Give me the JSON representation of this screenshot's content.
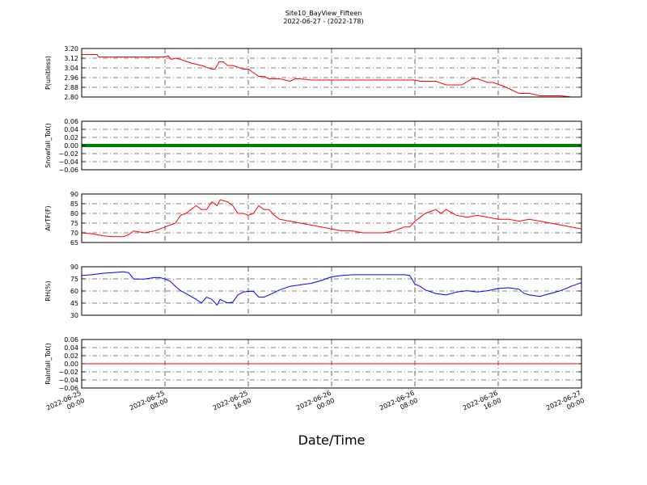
{
  "chart_data": {
    "type": "line",
    "title": "Site10_BayView_Fifteen",
    "subtitle": "2022-06-27 - (2022-178)",
    "xlabel": "Date/Time",
    "x_ticks": [
      "2022-06-25\n00:00",
      "2022-06-25\n08:00",
      "2022-06-25\n16:00",
      "2022-06-26\n00:00",
      "2022-06-26\n08:00",
      "2022-06-26\n16:00",
      "2022-06-27\n00:00"
    ],
    "grid": true,
    "panels": [
      {
        "ylabel": "P(unitless)",
        "ylim": [
          2.8,
          3.2
        ],
        "yticks": [
          "3.20",
          "3.12",
          "3.04",
          "2.96",
          "2.88",
          "2.80"
        ],
        "color": "#ff0000",
        "series": [
          {
            "x": [
              0,
              1.5,
              1.6,
              3.0,
              5.5,
              7.0,
              8.0,
              8.3,
              8.6,
              9.0,
              9.5,
              10.5,
              11.5,
              12.5,
              12.8,
              13.2,
              13.6,
              14.0,
              14.5,
              15.5,
              16.0,
              17.0,
              17.5,
              18.0,
              18.5,
              19.0,
              20.0,
              20.5,
              21.0,
              22.0,
              25.0,
              28.0,
              32.0,
              32.5,
              34.0,
              35.0,
              36.0,
              36.5,
              37.5,
              38.0,
              39.0,
              39.5,
              40.5,
              41.0,
              42.0,
              43.0,
              44.0,
              45.0,
              46.0,
              47.0,
              48.0
            ],
            "y": [
              3.15,
              3.15,
              3.13,
              3.13,
              3.13,
              3.13,
              3.13,
              3.14,
              3.11,
              3.12,
              3.11,
              3.08,
              3.06,
              3.03,
              3.03,
              3.09,
              3.09,
              3.06,
              3.06,
              3.03,
              3.03,
              2.97,
              2.97,
              2.95,
              2.95,
              2.95,
              2.93,
              2.95,
              2.95,
              2.94,
              2.94,
              2.94,
              2.94,
              2.93,
              2.93,
              2.9,
              2.9,
              2.9,
              2.95,
              2.95,
              2.92,
              2.92,
              2.89,
              2.87,
              2.83,
              2.83,
              2.81,
              2.81,
              2.81,
              2.8,
              2.8
            ]
          }
        ]
      },
      {
        "ylabel": "Snowfall_Tot()",
        "ylim": [
          -0.06,
          0.06
        ],
        "yticks": [
          "0.06",
          "0.04",
          "0.02",
          "0.00",
          "−0.02",
          "−0.04",
          "−0.06"
        ],
        "color": "#008000",
        "style": "thick",
        "series": [
          {
            "x": [
              0,
              48
            ],
            "y": [
              0.0,
              0.0
            ]
          }
        ]
      },
      {
        "ylabel": "AirTF(F)",
        "ylim": [
          65,
          90
        ],
        "yticks": [
          "90",
          "85",
          "80",
          "75",
          "70",
          "65"
        ],
        "color": "#ff0000",
        "series": [
          {
            "x": [
              0,
              1,
              1.5,
              2,
              3,
              4,
              4.5,
              5,
              6,
              7,
              7.5,
              8,
              8.5,
              9,
              9.5,
              10,
              10.5,
              11,
              11.5,
              12,
              12.5,
              13,
              13.3,
              14,
              14.5,
              15,
              15.5,
              16,
              16.5,
              17,
              17.5,
              18,
              18.5,
              19,
              20,
              21,
              22,
              23,
              24,
              25,
              26,
              27,
              28,
              29,
              30,
              31,
              31.5,
              32,
              32.5,
              33,
              33.5,
              34,
              34.5,
              35,
              36,
              37,
              38,
              39,
              40,
              41,
              42,
              43,
              44,
              45,
              46,
              47,
              48
            ],
            "y": [
              70,
              69.5,
              69,
              68.5,
              68,
              68,
              69,
              71,
              70,
              71,
              72,
              73,
              74,
              75,
              79,
              80,
              82,
              84,
              82,
              82,
              86,
              84,
              87,
              86,
              84,
              80,
              80,
              79,
              80,
              84,
              82,
              82,
              79,
              77,
              76,
              75,
              74,
              73,
              72,
              71,
              71,
              70,
              70,
              70,
              71,
              73,
              73,
              76,
              78,
              80,
              81,
              82,
              80,
              82,
              79,
              78,
              79,
              78,
              77,
              77,
              76,
              77,
              76,
              75,
              74,
              73,
              72
            ]
          }
        ]
      },
      {
        "ylabel": "RH(%)",
        "ylim": [
          30,
          97
        ],
        "yticks": [
          "90",
          "75",
          "60",
          "45",
          "30"
        ],
        "color": "#0000ff",
        "series": [
          {
            "x": [
              0,
              1,
              2,
              3,
              4,
              4.5,
              5,
              6,
              7,
              7.5,
              8,
              8.5,
              9,
              9.5,
              10,
              10.5,
              11,
              11.5,
              12,
              12.5,
              13,
              13.3,
              14,
              14.5,
              15,
              15.5,
              16,
              16.5,
              17,
              17.5,
              18,
              19,
              20,
              21,
              22,
              23,
              24,
              25,
              26,
              27,
              28,
              29,
              30,
              31,
              31.5,
              32,
              32.5,
              33,
              34,
              35,
              36,
              37,
              38,
              39,
              40,
              41,
              42,
              42.5,
              43,
              44,
              45,
              46,
              47,
              48
            ],
            "y": [
              85,
              86,
              88,
              89,
              90,
              89,
              80,
              80,
              82,
              82,
              80,
              77,
              70,
              64,
              60,
              56,
              52,
              47,
              55,
              52,
              44,
              52,
              47,
              48,
              58,
              62,
              63,
              63,
              55,
              55,
              58,
              65,
              70,
              72,
              74,
              78,
              83,
              85,
              86,
              86,
              86,
              86,
              86,
              86,
              85,
              73,
              70,
              65,
              60,
              58,
              62,
              64,
              62,
              64,
              67,
              68,
              66,
              60,
              58,
              56,
              60,
              64,
              70,
              75
            ]
          }
        ]
      },
      {
        "ylabel": "Rainfall_Tot()",
        "ylim": [
          -0.06,
          0.06
        ],
        "yticks": [
          "0.06",
          "0.04",
          "0.02",
          "0.00",
          "−0.02",
          "−0.04",
          "−0.06"
        ],
        "color": "#ff0000",
        "series": [
          {
            "x": [
              0,
              48
            ],
            "y": [
              0.0,
              0.0
            ]
          }
        ]
      }
    ]
  }
}
